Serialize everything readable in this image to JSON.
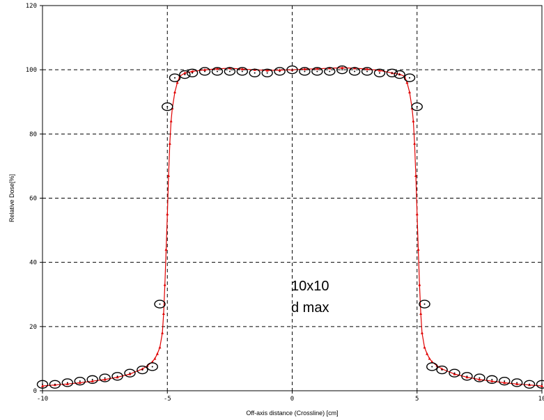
{
  "chart_data": {
    "type": "scatter",
    "xlabel": "Off-axis distance (Crossline) [cm]",
    "ylabel": "Relative Dose[%]",
    "xlim": [
      -10,
      10
    ],
    "ylim": [
      0,
      120
    ],
    "x_ticks": [
      -10,
      -5,
      0,
      5,
      10
    ],
    "x_tick_labels": [
      "-10",
      "-5",
      "0",
      "5",
      "10"
    ],
    "y_ticks": [
      0,
      20,
      40,
      60,
      80,
      100,
      120
    ],
    "y_tick_labels": [
      "0",
      "20",
      "40",
      "60",
      "80",
      "100",
      "120"
    ],
    "grid": "dashed",
    "legend": "none",
    "annotation": [
      "10x10",
      "d max"
    ],
    "colors": {
      "measured_line": "#e00000",
      "calculated_markers": "#000000",
      "grid": "#000000"
    },
    "series": [
      {
        "style": "line-with-triangle-markers",
        "color": "#e00000",
        "x": [
          -10,
          -9.5,
          -9,
          -8.5,
          -8,
          -7.5,
          -7,
          -6.5,
          -6,
          -5.8,
          -5.6,
          -5.5,
          -5.4,
          -5.3,
          -5.2,
          -5.15,
          -5.1,
          -5.05,
          -5.0,
          -4.95,
          -4.9,
          -4.85,
          -4.8,
          -4.7,
          -4.6,
          -4.5,
          -4.3,
          -4.0,
          -3.5,
          -3.0,
          -2.5,
          -2.0,
          -1.5,
          -1.0,
          -0.5,
          0,
          0.5,
          1.0,
          1.5,
          2.0,
          2.5,
          3.0,
          3.5,
          4.0,
          4.3,
          4.5,
          4.6,
          4.7,
          4.8,
          4.85,
          4.9,
          4.95,
          5.0,
          5.05,
          5.1,
          5.15,
          5.2,
          5.3,
          5.4,
          5.5,
          5.6,
          5.8,
          6.0,
          6.5,
          7.0,
          7.5,
          8.0,
          8.5,
          9.0,
          9.5,
          10
        ],
        "y": [
          1.5,
          1.8,
          2.1,
          2.5,
          3.0,
          3.5,
          4.2,
          5.2,
          6.8,
          7.8,
          9.0,
          10.0,
          11.5,
          13.5,
          18.0,
          24.0,
          33.0,
          44.0,
          55.0,
          67.0,
          77.0,
          84.0,
          88.0,
          93.0,
          96.0,
          98.0,
          99.0,
          99.5,
          100.0,
          100.3,
          100.5,
          100.2,
          100.0,
          99.8,
          99.9,
          100.0,
          100.2,
          100.3,
          100.5,
          100.6,
          100.5,
          100.2,
          99.8,
          99.0,
          98.6,
          98.0,
          96.0,
          93.0,
          88.0,
          84.0,
          77.0,
          67.0,
          55.0,
          44.0,
          33.0,
          24.0,
          18.0,
          13.5,
          11.5,
          10.0,
          9.0,
          7.8,
          6.8,
          5.2,
          4.2,
          3.5,
          3.0,
          2.5,
          2.1,
          1.8,
          1.5
        ]
      },
      {
        "style": "open-circle-markers",
        "color": "#000000",
        "x": [
          -10,
          -9.5,
          -9,
          -8.5,
          -8,
          -7.5,
          -7,
          -6.5,
          -6,
          -5.6,
          -5.3,
          -5.0,
          -4.7,
          -4.3,
          -4.0,
          -3.5,
          -3.0,
          -2.5,
          -2.0,
          -1.5,
          -1.0,
          -0.5,
          0,
          0.5,
          1.0,
          1.5,
          2.0,
          2.5,
          3.0,
          3.5,
          4.0,
          4.3,
          4.7,
          5.0,
          5.3,
          5.6,
          6.0,
          6.5,
          7.0,
          7.5,
          8.0,
          8.5,
          9.0,
          9.5,
          10
        ],
        "y": [
          2,
          2,
          2.5,
          3,
          3.5,
          4,
          4.5,
          5.5,
          6.5,
          7.5,
          27,
          88.5,
          97.5,
          98.5,
          99,
          99.5,
          99.5,
          99.5,
          99.5,
          99,
          99,
          99.5,
          100,
          99.5,
          99.5,
          99.5,
          100,
          99.5,
          99.5,
          99,
          99,
          98.5,
          97.5,
          88.5,
          27,
          7.5,
          6.5,
          5.5,
          4.5,
          4,
          3.5,
          3,
          2.5,
          2,
          2
        ]
      }
    ]
  }
}
